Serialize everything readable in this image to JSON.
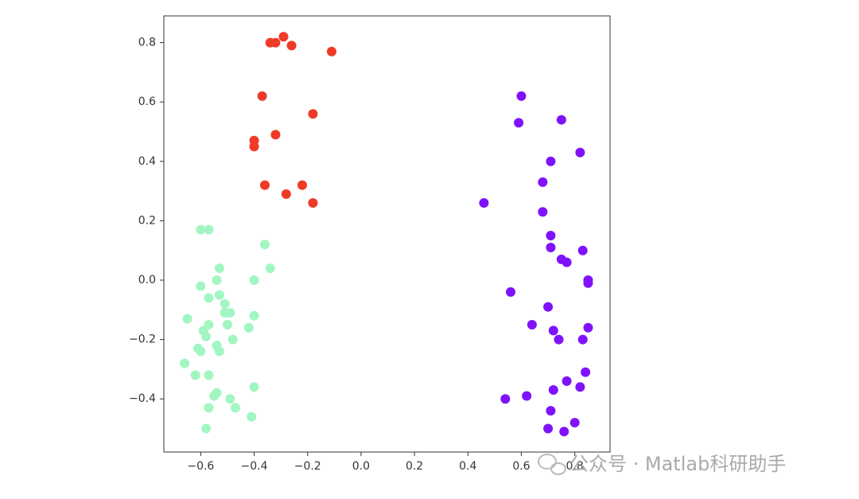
{
  "chart_data": {
    "type": "scatter",
    "xlim": [
      -0.738,
      0.932
    ],
    "ylim": [
      -0.579,
      0.89
    ],
    "xticks": [
      {
        "value": -0.6,
        "label": "−0.6"
      },
      {
        "value": -0.4,
        "label": "−0.4"
      },
      {
        "value": -0.2,
        "label": "−0.2"
      },
      {
        "value": 0,
        "label": "0.0"
      },
      0.2,
      0.4,
      0.6,
      0.8
    ],
    "yticks": [
      {
        "value": -0.4,
        "label": "−0.4"
      },
      {
        "value": -0.2,
        "label": "−0.2"
      },
      {
        "value": 0,
        "label": "0.0"
      },
      0.2,
      0.4,
      0.6,
      0.8
    ],
    "series": [
      {
        "color": "#ee3a26",
        "x": [
          -0.34,
          -0.32,
          -0.29,
          -0.26,
          -0.11,
          -0.37,
          -0.18,
          -0.32,
          -0.4,
          -0.4,
          -0.36,
          -0.22,
          -0.28,
          -0.18
        ],
        "y": [
          0.8,
          0.8,
          0.82,
          0.79,
          0.77,
          0.62,
          0.56,
          0.49,
          0.47,
          0.45,
          0.32,
          0.32,
          0.29,
          0.26
        ]
      },
      {
        "color": "#7f12fb",
        "x": [
          0.6,
          0.59,
          0.75,
          0.82,
          0.71,
          0.46,
          0.68,
          0.68,
          0.71,
          0.71,
          0.75,
          0.77,
          0.83,
          0.85,
          0.85,
          0.56,
          0.7,
          0.64,
          0.72,
          0.74,
          0.83,
          0.85,
          0.84,
          0.77,
          0.72,
          0.82,
          0.62,
          0.54,
          0.71,
          0.8,
          0.7,
          0.76
        ],
        "y": [
          0.62,
          0.53,
          0.54,
          0.43,
          0.4,
          0.26,
          0.33,
          0.23,
          0.15,
          0.11,
          0.07,
          0.06,
          0.1,
          0.0,
          -0.01,
          -0.04,
          -0.09,
          -0.15,
          -0.17,
          -0.2,
          -0.2,
          -0.16,
          -0.31,
          -0.34,
          -0.37,
          -0.36,
          -0.39,
          -0.4,
          -0.44,
          -0.48,
          -0.5,
          -0.51
        ]
      },
      {
        "color": "#a2f6c2",
        "x": [
          -0.6,
          -0.57,
          -0.36,
          -0.34,
          -0.53,
          -0.4,
          -0.54,
          -0.6,
          -0.53,
          -0.57,
          -0.51,
          -0.49,
          -0.51,
          -0.65,
          -0.4,
          -0.5,
          -0.42,
          -0.57,
          -0.59,
          -0.58,
          -0.48,
          -0.54,
          -0.53,
          -0.61,
          -0.6,
          -0.66,
          -0.62,
          -0.57,
          -0.4,
          -0.54,
          -0.55,
          -0.49,
          -0.47,
          -0.57,
          -0.41,
          -0.58
        ],
        "y": [
          0.17,
          0.17,
          0.12,
          0.04,
          0.04,
          0.0,
          0.0,
          -0.02,
          -0.05,
          -0.06,
          -0.08,
          -0.11,
          -0.11,
          -0.13,
          -0.12,
          -0.15,
          -0.16,
          -0.15,
          -0.17,
          -0.19,
          -0.2,
          -0.22,
          -0.24,
          -0.23,
          -0.24,
          -0.28,
          -0.32,
          -0.32,
          -0.36,
          -0.38,
          -0.39,
          -0.4,
          -0.43,
          -0.43,
          -0.46,
          -0.5
        ]
      }
    ]
  },
  "watermark": "公众号 · Matlab科研助手"
}
